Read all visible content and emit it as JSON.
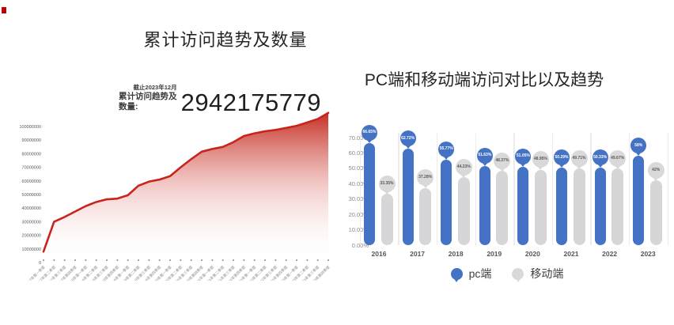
{
  "page": {
    "background": "#ffffff",
    "accent_red": "#c9241b",
    "accent_blue": "#4472c4",
    "accent_gray": "#d9d9d9"
  },
  "chart_data": [
    {
      "type": "area",
      "title": "累计访问趋势及数量",
      "annotation": {
        "asof": "截止2023年12月",
        "label": "累计访问趋势及数量:",
        "value": "2942175779"
      },
      "x": [
        "2017年第一季度",
        "2017年第二季度",
        "2017年第三季度",
        "2017年第四季度",
        "2018年第一季度",
        "2018年第二季度",
        "2018年第三季度",
        "2018年第四季度",
        "2019年第一季度",
        "2019年第二季度",
        "2019年第三季度",
        "2019年第四季度",
        "2020年第一季度",
        "2020年第二季度",
        "2020年第三季度",
        "2020年第四季度",
        "2021年第一季度",
        "2021年第二季度",
        "2021年第三季度",
        "2021年第四季度",
        "2022年第一季度",
        "2022年第二季度",
        "2022年第三季度",
        "2022年第四季度",
        "2023年第一季度",
        "2023年第二季度",
        "2023年第三季度",
        "2023年第四季度"
      ],
      "values": [
        8000000,
        30000000,
        33500000,
        37500000,
        41500000,
        44500000,
        46500000,
        47000000,
        49500000,
        56500000,
        59500000,
        61000000,
        63500000,
        70000000,
        76000000,
        81500000,
        83500000,
        85000000,
        88500000,
        93000000,
        95000000,
        96500000,
        97500000,
        99000000,
        100500000,
        103000000,
        105500000,
        110000000
      ],
      "ylim": [
        0,
        100000000
      ],
      "yticks": [
        0,
        10000000,
        20000000,
        30000000,
        40000000,
        50000000,
        60000000,
        70000000,
        80000000,
        90000000,
        100000000
      ],
      "line_color": "#c9241b",
      "grid": false,
      "legend_position": "none"
    },
    {
      "type": "bar",
      "title": "PC端和移动端访问对比以及趋势",
      "categories": [
        "2016",
        "2017",
        "2018",
        "2019",
        "2020",
        "2021",
        "2022",
        "2023"
      ],
      "series": [
        {
          "name": "pc端",
          "color": "#4472c4",
          "values": [
            66.65,
            62.72,
            55.77,
            51.63,
            51.05,
            50.29,
            50.33,
            58
          ],
          "labels": [
            "66.65%",
            "62.72%",
            "55.77%",
            "51.63%",
            "51.05%",
            "50.29%",
            "50.33%",
            "58%"
          ]
        },
        {
          "name": "移动端",
          "color": "#d9d9d9",
          "values": [
            33.35,
            37.28,
            44.23,
            48.37,
            48.95,
            49.71,
            49.67,
            42
          ],
          "labels": [
            "33.35%",
            "37.28%",
            "44.23%",
            "48.37%",
            "48.95%",
            "49.71%",
            "49.67%",
            "42%"
          ]
        }
      ],
      "ylim": [
        0,
        70
      ],
      "ytick_labels": [
        "0.00%",
        "10.00%",
        "20.00%",
        "30.00%",
        "40.00%",
        "50.00%",
        "60.00%",
        "70.00%"
      ],
      "grid": false,
      "legend_position": "bottom"
    }
  ]
}
